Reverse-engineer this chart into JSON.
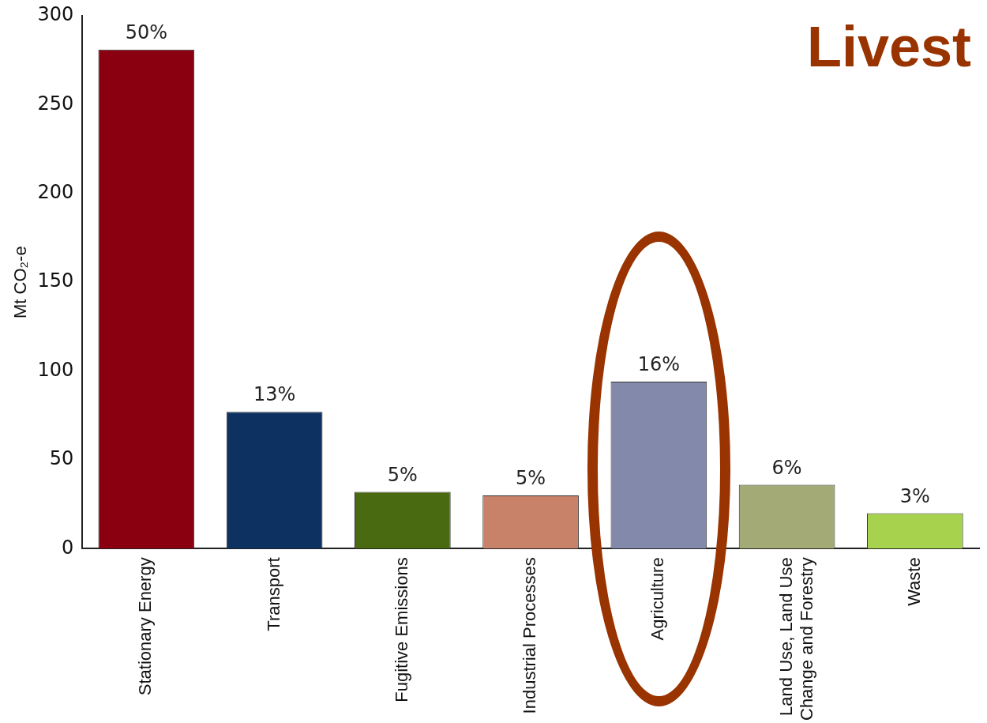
{
  "chart_data": {
    "type": "bar",
    "title": "Livest",
    "ylabel": "Mt CO₂-e",
    "categories": [
      "Stationary Energy",
      "Transport",
      "Fugitive Emissions",
      "Industrial Processes",
      "Agriculture",
      "Land Use, Land Use Change and Forestry",
      "Waste"
    ],
    "values": [
      281,
      77,
      32,
      30,
      94,
      36,
      20
    ],
    "colors": [
      "#8b0010",
      "#0d3262",
      "#4a6a12",
      "#c8826a",
      "#8289ab",
      "#a3aa76",
      "#a6d24e"
    ],
    "annotations": [
      {
        "text": "50%",
        "x": "Stationary Energy",
        "y": 281
      },
      {
        "text": "13%",
        "x": "Transport",
        "y": 77
      },
      {
        "text": "5%",
        "x": "Fugitive Emissions",
        "y": 32
      },
      {
        "text": "5%",
        "x": "Industrial Processes",
        "y": 30
      },
      {
        "text": "16%",
        "x": "Agriculture",
        "y": 94
      },
      {
        "text": "6%",
        "x": "Land Use, Land Use Change and Forestry",
        "y": 36
      },
      {
        "text": "3%",
        "x": "Waste",
        "y": 20
      }
    ],
    "ylim": [
      0,
      300
    ],
    "yticks": [
      0,
      50,
      100,
      150,
      200,
      250,
      300
    ],
    "grid": false,
    "legend": false
  }
}
